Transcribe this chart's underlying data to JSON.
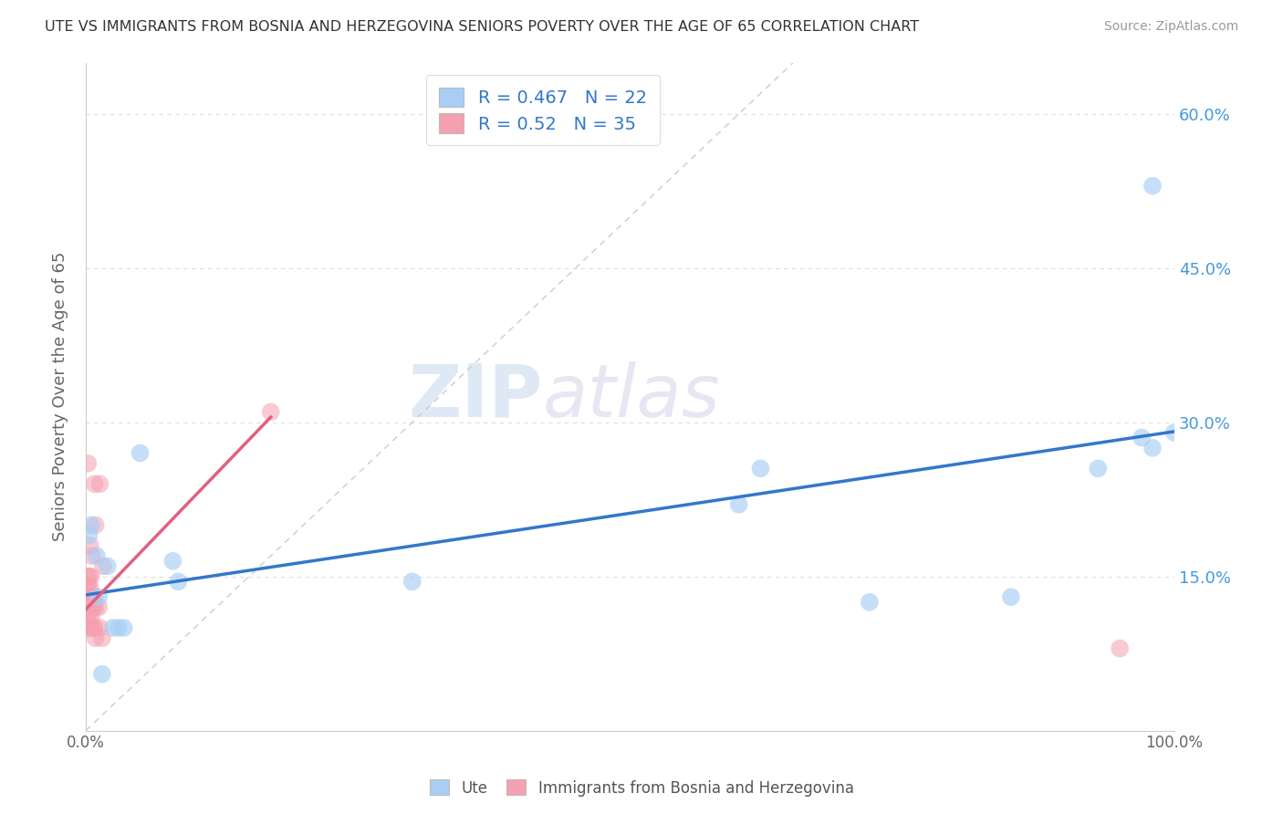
{
  "title": "UTE VS IMMIGRANTS FROM BOSNIA AND HERZEGOVINA SENIORS POVERTY OVER THE AGE OF 65 CORRELATION CHART",
  "source": "Source: ZipAtlas.com",
  "ylabel": "Seniors Poverty Over the Age of 65",
  "xlim": [
    0,
    1.0
  ],
  "ylim": [
    0,
    0.65
  ],
  "legend_labels": [
    "Ute",
    "Immigrants from Bosnia and Herzegovina"
  ],
  "ute_R": 0.467,
  "ute_N": 22,
  "bosnia_R": 0.52,
  "bosnia_N": 35,
  "ute_color": "#a8cef5",
  "ute_line_color": "#3377cc",
  "bosnia_color": "#f5a0b0",
  "bosnia_line_color": "#e06080",
  "diagonal_color": "#cccccc",
  "watermark_zip": "ZIP",
  "watermark_atlas": "atlas",
  "background_color": "#ffffff",
  "grid_color": "#dddddd",
  "ute_points_x": [
    0.003,
    0.005,
    0.01,
    0.012,
    0.015,
    0.02,
    0.025,
    0.03,
    0.035,
    0.05,
    0.08,
    0.085,
    0.3,
    0.6,
    0.62,
    0.72,
    0.85,
    0.93,
    0.97,
    0.98,
    0.98,
    1.0
  ],
  "ute_points_y": [
    0.19,
    0.2,
    0.17,
    0.13,
    0.055,
    0.16,
    0.1,
    0.1,
    0.1,
    0.27,
    0.165,
    0.145,
    0.145,
    0.22,
    0.255,
    0.125,
    0.13,
    0.255,
    0.285,
    0.275,
    0.53,
    0.29
  ],
  "bosnia_points_x": [
    0.001,
    0.001,
    0.001,
    0.002,
    0.002,
    0.002,
    0.002,
    0.003,
    0.003,
    0.003,
    0.003,
    0.004,
    0.004,
    0.004,
    0.005,
    0.005,
    0.005,
    0.005,
    0.006,
    0.006,
    0.007,
    0.007,
    0.008,
    0.008,
    0.008,
    0.009,
    0.009,
    0.009,
    0.012,
    0.013,
    0.013,
    0.015,
    0.016,
    0.17,
    0.95
  ],
  "bosnia_points_y": [
    0.11,
    0.12,
    0.13,
    0.14,
    0.14,
    0.15,
    0.26,
    0.1,
    0.11,
    0.13,
    0.15,
    0.12,
    0.14,
    0.18,
    0.1,
    0.11,
    0.13,
    0.15,
    0.12,
    0.17,
    0.1,
    0.12,
    0.1,
    0.13,
    0.24,
    0.09,
    0.12,
    0.2,
    0.12,
    0.1,
    0.24,
    0.09,
    0.16,
    0.31,
    0.08
  ],
  "ute_line_x0": 0.0,
  "ute_line_y0": 0.132,
  "ute_line_x1": 1.0,
  "ute_line_y1": 0.291,
  "bosnia_line_x0": 0.0,
  "bosnia_line_y0": 0.118,
  "bosnia_line_x1": 0.17,
  "bosnia_line_y1": 0.305
}
